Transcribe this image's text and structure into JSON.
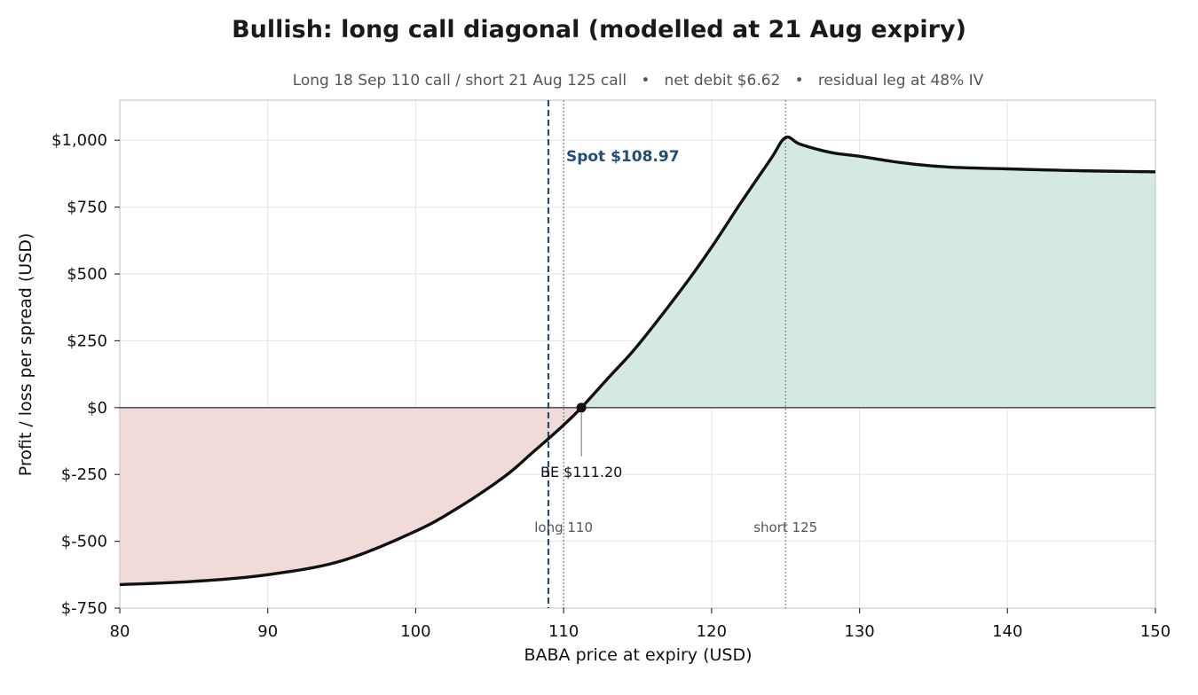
{
  "chart_data": {
    "type": "line",
    "title": "Bullish: long call diagonal (modelled at 21 Aug expiry)",
    "subtitle": "Long 18 Sep 110 call / short 21 Aug 125 call   •   net debit $6.62   •   residual leg at 48% IV",
    "xlabel": "BABA price at expiry (USD)",
    "ylabel": "Profit / loss per spread (USD)",
    "xlim": [
      80,
      150
    ],
    "ylim": [
      -750,
      1150
    ],
    "x_ticks": [
      80,
      90,
      100,
      110,
      120,
      130,
      140,
      150
    ],
    "x_tick_labels": [
      "80",
      "90",
      "100",
      "110",
      "120",
      "130",
      "140",
      "150"
    ],
    "y_ticks": [
      -750,
      -500,
      -250,
      0,
      250,
      500,
      750,
      1000
    ],
    "y_tick_labels": [
      "$-750",
      "$-500",
      "$-250",
      "$0",
      "$250",
      "$500",
      "$750",
      "$1,000"
    ],
    "grid": true,
    "series": [
      {
        "x": [
          80,
          85,
          90,
          95,
          100,
          103,
          106,
          108,
          109,
          110,
          111.2,
          113,
          115,
          118,
          120,
          122,
          124,
          125,
          126,
          128,
          130,
          133,
          136,
          140,
          145,
          150
        ],
        "y": [
          -662,
          -650,
          -625,
          -573,
          -462,
          -370,
          -258,
          -163,
          -115,
          -65,
          0,
          110,
          232,
          445,
          600,
          768,
          930,
          1010,
          985,
          955,
          940,
          915,
          900,
          893,
          886,
          882
        ]
      }
    ],
    "colors": {
      "profit_fill": "#d4e9df",
      "loss_fill": "#f1dbd8",
      "curve": "#111111",
      "spot_line": "#1f4e79",
      "zero_line": "#555555",
      "strike_line": "#555555"
    },
    "spot": {
      "value": 108.97,
      "label": "Spot $108.97"
    },
    "breakeven": {
      "value": 111.2,
      "label": "BE $111.20"
    },
    "strikes": [
      {
        "value": 110,
        "label": "long 110"
      },
      {
        "value": 125,
        "label": "short 125"
      }
    ]
  }
}
